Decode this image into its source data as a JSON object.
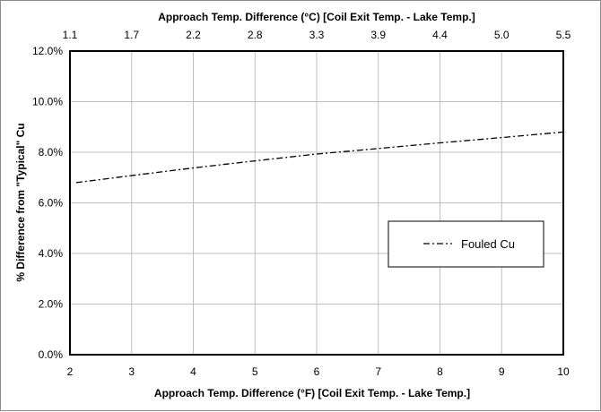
{
  "chart_data": {
    "type": "line",
    "title": "",
    "xlabel": "Approach Temp. Difference (°F) [Coil Exit Temp. - Lake Temp.]",
    "x2label": "Approach Temp. Difference (°C) [Coil Exit Temp. - Lake Temp.]",
    "ylabel": "% Difference from \"Typical\" Cu",
    "xlim": [
      2,
      10
    ],
    "ylim": [
      0.0,
      12.0
    ],
    "x_ticks": [
      "2",
      "3",
      "4",
      "5",
      "6",
      "7",
      "8",
      "9",
      "10"
    ],
    "x2_ticks": [
      "1.1",
      "1.7",
      "2.2",
      "2.8",
      "3.3",
      "3.9",
      "4.4",
      "5.0",
      "5.5"
    ],
    "y_ticks": [
      "0.0%",
      "2.0%",
      "4.0%",
      "6.0%",
      "8.0%",
      "10.0%",
      "12.0%"
    ],
    "y_unit": "percent",
    "grid": true,
    "legend_position": "right-middle",
    "series": [
      {
        "name": "Fouled Cu",
        "line_style": "dash-dot",
        "color": "#000000",
        "x": [
          2.1,
          3,
          4,
          5,
          6,
          7,
          8,
          9,
          10
        ],
        "y": [
          6.8,
          7.08,
          7.38,
          7.66,
          7.93,
          8.15,
          8.37,
          8.58,
          8.8
        ]
      }
    ]
  }
}
